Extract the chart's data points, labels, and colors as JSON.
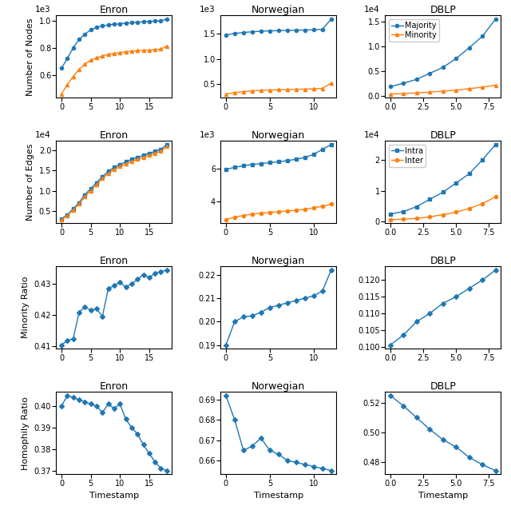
{
  "enron_t_nodes": [
    0,
    1,
    2,
    3,
    4,
    5,
    6,
    7,
    8,
    9,
    10,
    11,
    12,
    13,
    14,
    15,
    16,
    17,
    18
  ],
  "enron_maj_nodes": [
    650,
    720,
    800,
    860,
    900,
    930,
    950,
    960,
    967,
    972,
    976,
    980,
    984,
    987,
    990,
    993,
    995,
    998,
    1010
  ],
  "enron_min_nodes": [
    460,
    530,
    590,
    640,
    680,
    708,
    725,
    740,
    750,
    758,
    764,
    770,
    774,
    778,
    780,
    783,
    786,
    790,
    812
  ],
  "norw_t_nodes": [
    0,
    1,
    2,
    3,
    4,
    5,
    6,
    7,
    8,
    9,
    10,
    11,
    12
  ],
  "norw_maj_nodes": [
    1480,
    1510,
    1530,
    1545,
    1555,
    1563,
    1568,
    1572,
    1576,
    1580,
    1585,
    1592,
    1800
  ],
  "norw_min_nodes": [
    290,
    320,
    340,
    355,
    365,
    373,
    378,
    382,
    386,
    390,
    396,
    405,
    510
  ],
  "dblp_t_nodes": [
    0,
    1,
    2,
    3,
    4,
    5,
    6,
    7,
    8
  ],
  "dblp_maj_nodes": [
    1800,
    2500,
    3300,
    4500,
    5700,
    7500,
    9700,
    12000,
    15500
  ],
  "dblp_min_nodes": [
    300,
    400,
    550,
    700,
    900,
    1100,
    1400,
    1700,
    2100
  ],
  "enron_t_edges": [
    0,
    1,
    2,
    3,
    4,
    5,
    6,
    7,
    8,
    9,
    10,
    11,
    12,
    13,
    14,
    15,
    16,
    17,
    18
  ],
  "enron_intra_edges": [
    3000,
    4000,
    5500,
    7000,
    9000,
    10500,
    12000,
    13500,
    14800,
    15800,
    16500,
    17200,
    17800,
    18300,
    18800,
    19300,
    19800,
    20300,
    21500
  ],
  "enron_inter_edges": [
    2800,
    3800,
    5200,
    6700,
    8500,
    10000,
    11500,
    13000,
    14300,
    15300,
    16000,
    16700,
    17300,
    17800,
    18300,
    18800,
    19300,
    19800,
    21000
  ],
  "norw_t_edges": [
    0,
    1,
    2,
    3,
    4,
    5,
    6,
    7,
    8,
    9,
    10,
    11,
    12
  ],
  "norw_intra_edges": [
    5980,
    6100,
    6200,
    6280,
    6330,
    6390,
    6440,
    6510,
    6600,
    6700,
    6900,
    7200,
    7500
  ],
  "norw_inter_edges": [
    2900,
    3050,
    3150,
    3230,
    3290,
    3340,
    3390,
    3430,
    3480,
    3540,
    3620,
    3720,
    3850
  ],
  "dblp_t_edges": [
    0,
    1,
    2,
    3,
    4,
    5,
    6,
    7,
    8
  ],
  "dblp_intra_edges": [
    2400,
    3200,
    4800,
    7200,
    9500,
    12500,
    15500,
    20000,
    25000
  ],
  "dblp_inter_edges": [
    600,
    700,
    1000,
    1500,
    2200,
    3000,
    4200,
    5800,
    8000
  ],
  "enron_t_minority": [
    0,
    1,
    2,
    3,
    4,
    5,
    6,
    7,
    8,
    9,
    10,
    11,
    12,
    13,
    14,
    15,
    16,
    17,
    18
  ],
  "enron_minority_ratio": [
    0.4103,
    0.4118,
    0.4123,
    0.4208,
    0.4227,
    0.4215,
    0.422,
    0.4195,
    0.4285,
    0.4295,
    0.4305,
    0.429,
    0.43,
    0.4315,
    0.433,
    0.432,
    0.4335,
    0.434,
    0.4345
  ],
  "norw_t_minority": [
    0,
    1,
    2,
    3,
    4,
    5,
    6,
    7,
    8,
    9,
    10,
    11,
    12
  ],
  "norw_minority_ratio": [
    0.19,
    0.2,
    0.202,
    0.2025,
    0.204,
    0.206,
    0.207,
    0.208,
    0.209,
    0.21,
    0.211,
    0.213,
    0.222
  ],
  "dblp_t_minority": [
    0,
    1,
    2,
    3,
    4,
    5,
    6,
    7,
    8
  ],
  "dblp_minority_ratio": [
    0.1005,
    0.1035,
    0.1075,
    0.11,
    0.113,
    0.115,
    0.1175,
    0.12,
    0.123
  ],
  "enron_t_homophily": [
    0,
    1,
    2,
    3,
    4,
    5,
    6,
    7,
    8,
    9,
    10,
    11,
    12,
    13,
    14,
    15,
    16,
    17,
    18
  ],
  "enron_homophily_ratio": [
    0.4,
    0.405,
    0.404,
    0.403,
    0.402,
    0.401,
    0.4,
    0.397,
    0.401,
    0.399,
    0.401,
    0.394,
    0.39,
    0.387,
    0.382,
    0.378,
    0.374,
    0.371,
    0.37
  ],
  "norw_t_homophily": [
    0,
    1,
    2,
    3,
    4,
    5,
    6,
    7,
    8,
    9,
    10,
    11,
    12
  ],
  "norw_homophily_ratio": [
    0.692,
    0.68,
    0.665,
    0.667,
    0.671,
    0.665,
    0.663,
    0.66,
    0.659,
    0.658,
    0.657,
    0.656,
    0.655
  ],
  "dblp_t_homophily": [
    0,
    1,
    2,
    3,
    4,
    5,
    6,
    7,
    8
  ],
  "dblp_homophily_ratio": [
    0.525,
    0.518,
    0.51,
    0.502,
    0.495,
    0.49,
    0.483,
    0.478,
    0.474
  ],
  "blue": "#1f77b4",
  "orange": "#ff7f0e"
}
